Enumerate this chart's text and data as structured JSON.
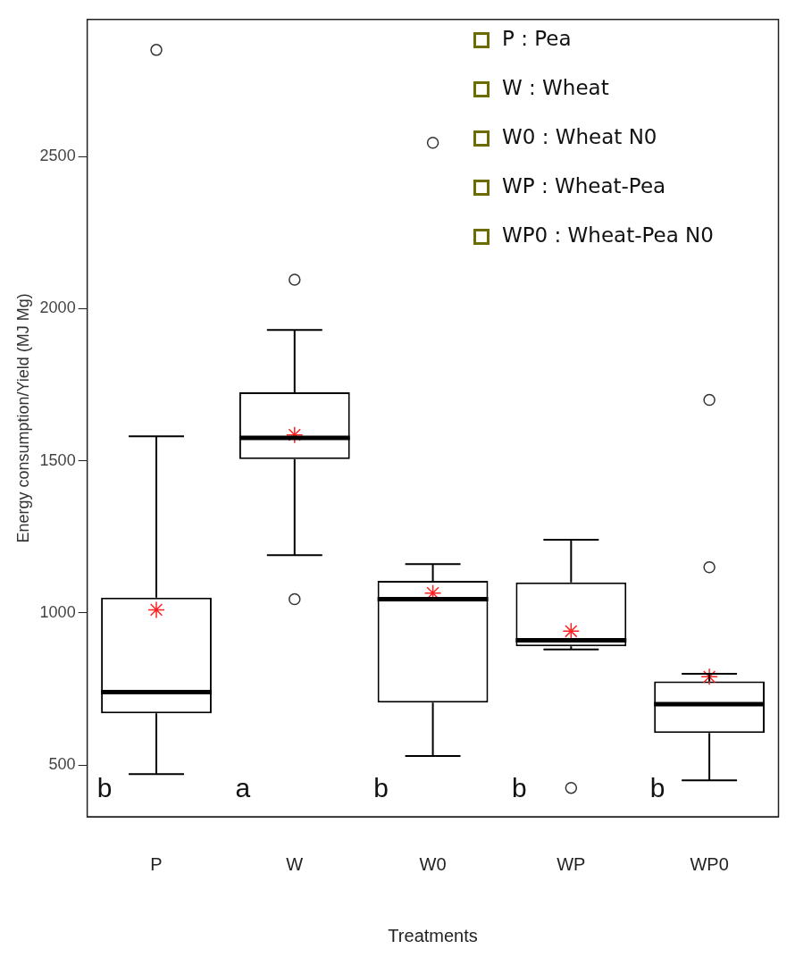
{
  "chart_data": {
    "type": "box",
    "xlabel": "Treatments",
    "ylabel": "Energy consumption/Yield (MJ Mg)",
    "categories": [
      "P",
      "W",
      "W0",
      "WP",
      "WP0"
    ],
    "boxes": [
      {
        "low": 470,
        "q1": 670,
        "median": 740,
        "q3": 1050,
        "high": 1580,
        "mean": 1010,
        "outliers": [
          2850
        ]
      },
      {
        "low": 1190,
        "q1": 1505,
        "median": 1575,
        "q3": 1725,
        "high": 1930,
        "mean": 1585,
        "outliers": [
          2095,
          1045
        ]
      },
      {
        "low": 530,
        "q1": 705,
        "median": 1045,
        "q3": 1105,
        "high": 1160,
        "mean": 1065,
        "outliers": [
          2545
        ]
      },
      {
        "low": 880,
        "q1": 890,
        "median": 910,
        "q3": 1100,
        "high": 1240,
        "mean": 940,
        "outliers": [
          425
        ]
      },
      {
        "low": 450,
        "q1": 605,
        "median": 700,
        "q3": 775,
        "high": 800,
        "mean": 790,
        "outliers": [
          1700,
          1150
        ]
      }
    ],
    "color": "#000000",
    "ylim": [
      330,
      2950
    ],
    "yticks": [
      500,
      1000,
      1500,
      2000,
      2500
    ],
    "grid": false,
    "legend": false,
    "annotations": [
      "P : Pea",
      "W : Wheat",
      "W0 : Wheat N0",
      "WP : Wheat-Pea",
      "WP0 : Wheat-Pea N0",
      "b",
      "a",
      "b",
      "b",
      "b"
    ]
  }
}
